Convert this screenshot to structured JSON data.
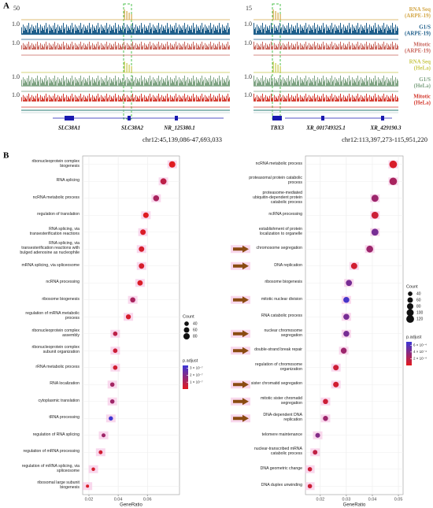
{
  "panel_a": {
    "label": "A",
    "tracks": [
      {
        "lines": [
          "RNA Seq",
          "(ARPE-19)"
        ],
        "color": "#d4a84a",
        "kind": "rnaseq"
      },
      {
        "lines": [
          "G1/S",
          "(ARPE-19)"
        ],
        "color": "#1f5f8b",
        "kind": "signal"
      },
      {
        "lines": [
          "Mitotic",
          "(ARPE-19)"
        ],
        "color": "#c8655c",
        "kind": "signal"
      },
      {
        "lines": [
          "RNA Seq",
          "(HeLa)"
        ],
        "color": "#c9c84e",
        "kind": "rnaseq"
      },
      {
        "lines": [
          "G1/S",
          "(HeLa)"
        ],
        "color": "#7fa383",
        "kind": "signal"
      },
      {
        "lines": [
          "Mitotic",
          "(HeLa)"
        ],
        "color": "#d43a2f",
        "kind": "signal"
      }
    ],
    "left": {
      "scales": [
        "50",
        "1.0",
        "1.0",
        null,
        "1.0",
        "1.0"
      ],
      "genes": [
        "SLC38A1",
        "SLC38A2",
        "NR_125380.1"
      ],
      "region": "chr12:45,139,086-47,693,033"
    },
    "right": {
      "scales": [
        "15",
        "1.0",
        "1.0",
        null,
        "1.0",
        "1.0"
      ],
      "genes": [
        "TBX3",
        "XR_001749325.1",
        "XR_429190.3"
      ],
      "region": "chr12:113,397,273-115,951,220"
    }
  },
  "panel_b": {
    "label": "B"
  },
  "chart_data": [
    {
      "type": "dot",
      "categories": [
        "ribonucleoprotein complex biogenesis",
        "RNA splicing",
        "ncRNA metabolic process",
        "regulation of translation",
        "RNA splicing, via transesterification reactions",
        "RNA splicing, via transesterification reactions with bulged adenosine as nucleophile",
        "mRNA splicing, via spliceosome",
        "ncRNA processing",
        "ribosome biogenesis",
        "regulation of mRNA metabolic process",
        "ribonucleoprotein complex assembly",
        "ribonucleoprotein complex subunit organization",
        "rRNA metabolic process",
        "RNA localization",
        "cytoplasmic translation",
        "tRNA processing",
        "regulation of RNA splicing",
        "regulation of mRNA processing",
        "regulation of mRNA splicing, via spliceosome",
        "ribosomal large subunit biogenesis"
      ],
      "values": [
        0.077,
        0.071,
        0.066,
        0.059,
        0.057,
        0.056,
        0.056,
        0.055,
        0.05,
        0.047,
        0.038,
        0.038,
        0.038,
        0.036,
        0.036,
        0.035,
        0.03,
        0.028,
        0.023,
        0.019
      ],
      "counts": [
        80,
        75,
        70,
        62,
        60,
        59,
        59,
        58,
        53,
        50,
        40,
        40,
        40,
        38,
        38,
        37,
        32,
        30,
        25,
        20
      ],
      "p_adjust": [
        1e-08,
        8e-08,
        1.2e-07,
        1e-08,
        2e-08,
        3e-08,
        3e-08,
        2e-08,
        1.2e-07,
        3e-08,
        8e-08,
        5e-08,
        4e-08,
        1.3e-07,
        1.4e-07,
        3.3e-07,
        1.4e-07,
        4e-08,
        3e-08,
        2e-08
      ],
      "xlabel": "GeneRatio",
      "xlim": [
        0.0157,
        0.082
      ],
      "xticks": [
        0.02,
        0.04,
        0.06
      ],
      "size_legend": {
        "title": "Count",
        "values": [
          40,
          60,
          80
        ]
      },
      "color_legend": {
        "title": "p.adjust",
        "clim": [
          0,
          3.4e-07
        ],
        "low_color": "#e41a1c",
        "high_color": "#3b37d6",
        "ticks": [
          {
            "value": 3e-07,
            "label": "3 × 10⁻⁷"
          },
          {
            "value": 2e-07,
            "label": "2 × 10⁻⁷"
          },
          {
            "value": 1e-07,
            "label": "1 × 10⁻⁷"
          }
        ]
      }
    },
    {
      "type": "dot",
      "categories": [
        "ncRNA metabolic process",
        "proteasomal protein catabolic process",
        "proteasome-mediated ubiquitin-dependent protein catabolic process",
        "ncRNA processing",
        "establishment of protein localization to organelle",
        "chromosome segregation",
        "DNA replication",
        "ribosome biogenesis",
        "mitotic nuclear division",
        "RNA catabolic process",
        "nuclear chromosome segregation",
        "double-strand break repair",
        "regulation of chromosome organization",
        "sister chromatid segregation",
        "mitotic sister chromatid segregation",
        "DNA-dependent DNA replication",
        "telomere maintenance",
        "nuclear-transcribed mRNA catabolic process",
        "DNA geometric change",
        "DNA duplex unwinding"
      ],
      "values": [
        0.048,
        0.048,
        0.041,
        0.041,
        0.041,
        0.039,
        0.033,
        0.031,
        0.03,
        0.03,
        0.03,
        0.029,
        0.026,
        0.026,
        0.022,
        0.022,
        0.019,
        0.018,
        0.016,
        0.016
      ],
      "counts": [
        115,
        113,
        98,
        97,
        97,
        92,
        78,
        74,
        71,
        71,
        70,
        69,
        62,
        62,
        53,
        52,
        45,
        43,
        38,
        38
      ],
      "p_adjust": [
        5e-05,
        0.00025,
        0.0003,
        0.0001,
        0.00045,
        0.0003,
        8e-05,
        0.00045,
        0.00065,
        0.00045,
        0.00045,
        0.0003,
        0.0001,
        8e-05,
        0.0001,
        0.0003,
        0.0004,
        0.00015,
        0.0001,
        0.0001
      ],
      "xlabel": "GeneRatio",
      "xlim": [
        0.0143,
        0.0518
      ],
      "xticks": [
        0.02,
        0.03,
        0.04,
        0.05
      ],
      "size_legend": {
        "title": "Count",
        "values": [
          40,
          60,
          80,
          100,
          120
        ]
      },
      "color_legend": {
        "title": "p.adjust",
        "clim": [
          0,
          0.0007
        ],
        "low_color": "#e41a1c",
        "high_color": "#3b37d6",
        "ticks": [
          {
            "value": 0.0006,
            "label": "6 × 10⁻⁴"
          },
          {
            "value": 0.0004,
            "label": "4 × 10⁻⁴"
          },
          {
            "value": 0.0002,
            "label": "2 × 10⁻⁴"
          }
        ]
      }
    }
  ]
}
